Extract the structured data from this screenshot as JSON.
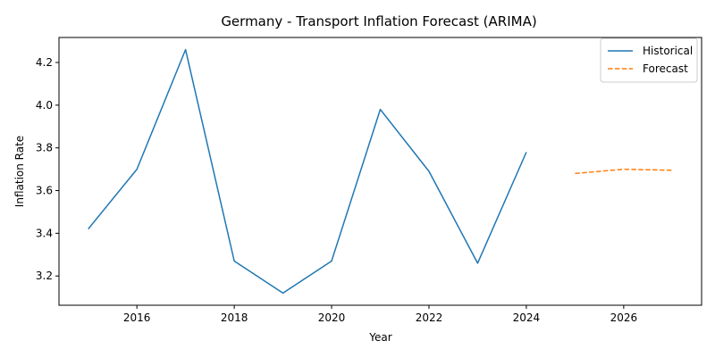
{
  "chart_data": {
    "type": "line",
    "title": "Germany - Transport Inflation Forecast (ARIMA)",
    "xlabel": "Year",
    "ylabel": "Inflation Rate",
    "xlim": [
      2014.4,
      2027.6
    ],
    "ylim": [
      3.063,
      4.317
    ],
    "xticks": [
      2016,
      2018,
      2020,
      2022,
      2024,
      2026
    ],
    "yticks": [
      3.2,
      3.4,
      3.6,
      3.8,
      4.0,
      4.2
    ],
    "grid": false,
    "legend_position": "top-right",
    "series": [
      {
        "name": "Historical",
        "color": "#1f77b4",
        "style": "solid",
        "x": [
          2015,
          2016,
          2017,
          2018,
          2019,
          2020,
          2021,
          2022,
          2023,
          2024
        ],
        "y": [
          3.42,
          3.7,
          4.26,
          3.27,
          3.12,
          3.27,
          3.98,
          3.69,
          3.26,
          3.78
        ]
      },
      {
        "name": "Forecast",
        "color": "#ff7f0e",
        "style": "dashed",
        "x": [
          2025,
          2026,
          2027
        ],
        "y": [
          3.68,
          3.7,
          3.695
        ]
      }
    ]
  }
}
